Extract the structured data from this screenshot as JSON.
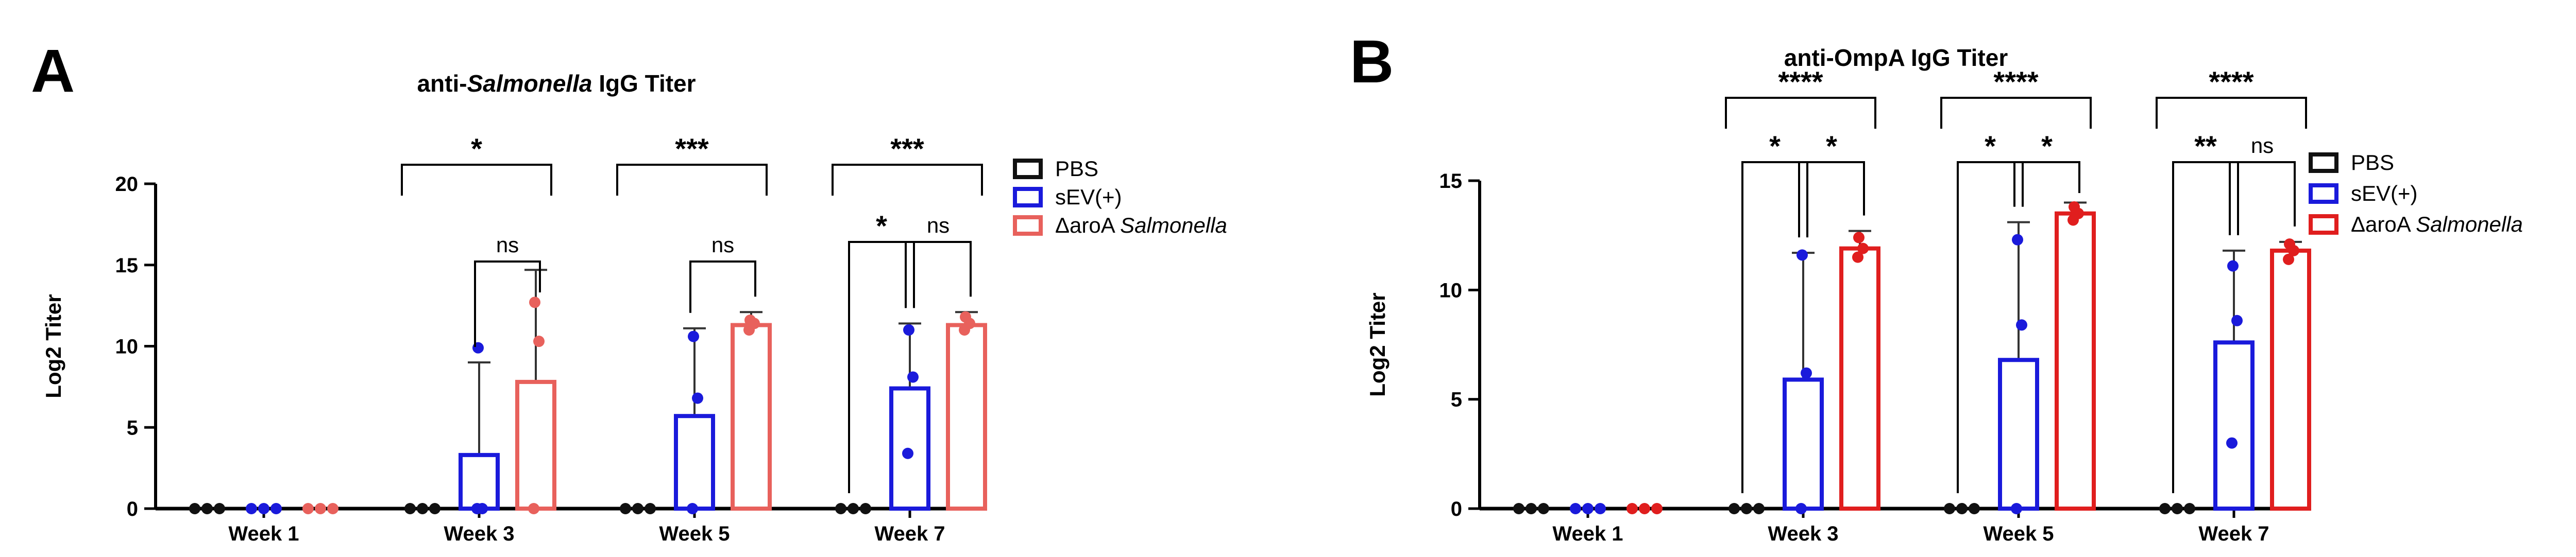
{
  "chart_data": [
    {
      "panel_label": "A",
      "type": "bar",
      "title_parts": [
        {
          "text": "anti-",
          "italic": false
        },
        {
          "text": "Salmonella",
          "italic": true
        },
        {
          "text": " IgG Titer",
          "italic": false
        }
      ],
      "ylabel": "Log2 Titer",
      "xlabel": "",
      "ylim": [
        0,
        20
      ],
      "yticks": [
        "0",
        "5",
        "10",
        "15",
        "20"
      ],
      "grid": false,
      "legend_position": "top-right",
      "categories": [
        "Week 1",
        "Week 3",
        "Week 5",
        "Week 7"
      ],
      "series": [
        {
          "name": "PBS",
          "name_parts": [
            {
              "text": "PBS",
              "italic": false
            }
          ],
          "color": "#111111",
          "values": [
            0,
            0,
            0,
            0
          ],
          "error": [
            0,
            0,
            0,
            0
          ],
          "points": [
            [
              0,
              0,
              0
            ],
            [
              0,
              0,
              0
            ],
            [
              0,
              0,
              0
            ],
            [
              0,
              0,
              0
            ]
          ]
        },
        {
          "name": "sEV(+)",
          "name_parts": [
            {
              "text": "sEV(+)",
              "italic": false
            }
          ],
          "color": "#1a1adb",
          "values": [
            0,
            3.3,
            5.7,
            7.4
          ],
          "error": [
            0,
            5.7,
            5.4,
            4.0
          ],
          "points": [
            [
              0,
              0,
              0
            ],
            [
              0,
              0,
              9.9
            ],
            [
              0,
              6.8,
              10.6
            ],
            [
              3.4,
              8.1,
              11.0
            ]
          ]
        },
        {
          "name": "ΔaroA Salmonella",
          "name_parts": [
            {
              "text": "ΔaroA ",
              "italic": false
            },
            {
              "text": "Salmonella",
              "italic": true
            }
          ],
          "color": "#e8615c",
          "values": [
            0,
            7.8,
            11.3,
            11.3
          ],
          "error": [
            0,
            6.9,
            0.8,
            0.8
          ],
          "points": [
            [
              0,
              0,
              0
            ],
            [
              0,
              10.3,
              12.7
            ],
            [
              11.0,
              11.4,
              11.6
            ],
            [
              11.0,
              11.4,
              11.8
            ]
          ]
        }
      ],
      "significance": [
        {
          "category": 1,
          "from": 0,
          "to": 2,
          "label": "*"
        },
        {
          "category": 1,
          "from": 1,
          "to": 2,
          "label": "ns"
        },
        {
          "category": 2,
          "from": 0,
          "to": 2,
          "label": "***"
        },
        {
          "category": 2,
          "from": 1,
          "to": 2,
          "label": "ns"
        },
        {
          "category": 3,
          "from": 0,
          "to": 2,
          "label": "***"
        },
        {
          "category": 3,
          "from": 0,
          "to": 1,
          "label": "*"
        },
        {
          "category": 3,
          "from": 1,
          "to": 2,
          "label": "ns"
        }
      ]
    },
    {
      "panel_label": "B",
      "type": "bar",
      "title_parts": [
        {
          "text": "anti-OmpA IgG Titer",
          "italic": false
        }
      ],
      "ylabel": "Log2 Titer",
      "xlabel": "",
      "ylim": [
        0,
        15
      ],
      "yticks": [
        "0",
        "5",
        "10",
        "15"
      ],
      "grid": false,
      "legend_position": "top-right",
      "categories": [
        "Week 1",
        "Week 3",
        "Week 5",
        "Week 7"
      ],
      "series": [
        {
          "name": "PBS",
          "name_parts": [
            {
              "text": "PBS",
              "italic": false
            }
          ],
          "color": "#111111",
          "values": [
            0,
            0,
            0,
            0
          ],
          "error": [
            0,
            0,
            0,
            0
          ],
          "points": [
            [
              0,
              0,
              0
            ],
            [
              0,
              0,
              0
            ],
            [
              0,
              0,
              0
            ],
            [
              0,
              0,
              0
            ]
          ]
        },
        {
          "name": "sEV(+)",
          "name_parts": [
            {
              "text": "sEV(+)",
              "italic": false
            }
          ],
          "color": "#1a1adb",
          "values": [
            0,
            5.9,
            6.8,
            7.6
          ],
          "error": [
            0,
            5.8,
            6.3,
            4.2
          ],
          "points": [
            [
              0,
              0,
              0
            ],
            [
              0,
              6.2,
              11.6
            ],
            [
              0,
              8.4,
              12.3
            ],
            [
              3.0,
              8.6,
              11.1
            ]
          ]
        },
        {
          "name": "ΔaroA Salmonella",
          "name_parts": [
            {
              "text": "ΔaroA ",
              "italic": false
            },
            {
              "text": "Salmonella",
              "italic": true
            }
          ],
          "color": "#e01e1e",
          "values": [
            0,
            11.9,
            13.5,
            11.8
          ],
          "error": [
            0,
            0.8,
            0.5,
            0.4
          ],
          "points": [
            [
              0,
              0,
              0
            ],
            [
              11.5,
              11.9,
              12.4
            ],
            [
              13.2,
              13.5,
              13.8
            ],
            [
              11.4,
              11.8,
              12.1
            ]
          ]
        }
      ],
      "significance": [
        {
          "category": 1,
          "from": 0,
          "to": 2,
          "label": "****"
        },
        {
          "category": 1,
          "from": 0,
          "to": 1,
          "label": "*"
        },
        {
          "category": 1,
          "from": 1,
          "to": 2,
          "label": "*"
        },
        {
          "category": 2,
          "from": 0,
          "to": 2,
          "label": "****"
        },
        {
          "category": 2,
          "from": 0,
          "to": 1,
          "label": "*"
        },
        {
          "category": 2,
          "from": 1,
          "to": 2,
          "label": "*"
        },
        {
          "category": 3,
          "from": 0,
          "to": 2,
          "label": "****"
        },
        {
          "category": 3,
          "from": 0,
          "to": 1,
          "label": "**"
        },
        {
          "category": 3,
          "from": 1,
          "to": 2,
          "label": "ns"
        }
      ]
    }
  ]
}
